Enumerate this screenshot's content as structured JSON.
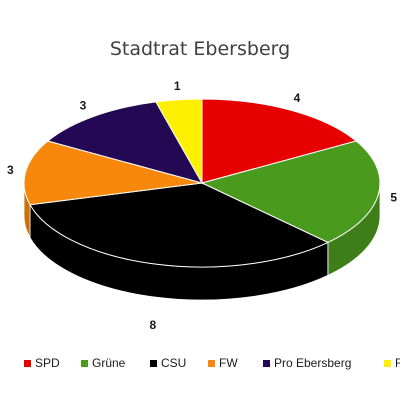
{
  "chart_data": {
    "type": "pie",
    "title": "Stadtrat Ebersberg",
    "categories": [
      "SPD",
      "Grüne",
      "CSU",
      "FW",
      "Pro Ebersberg",
      "FDP"
    ],
    "values": [
      4,
      5,
      8,
      3,
      3,
      1
    ],
    "colors": [
      "#e60000",
      "#4a9a1e",
      "#000000",
      "#f7880c",
      "#230954",
      "#ffef00"
    ],
    "legend_position": "bottom",
    "three_d": true
  }
}
